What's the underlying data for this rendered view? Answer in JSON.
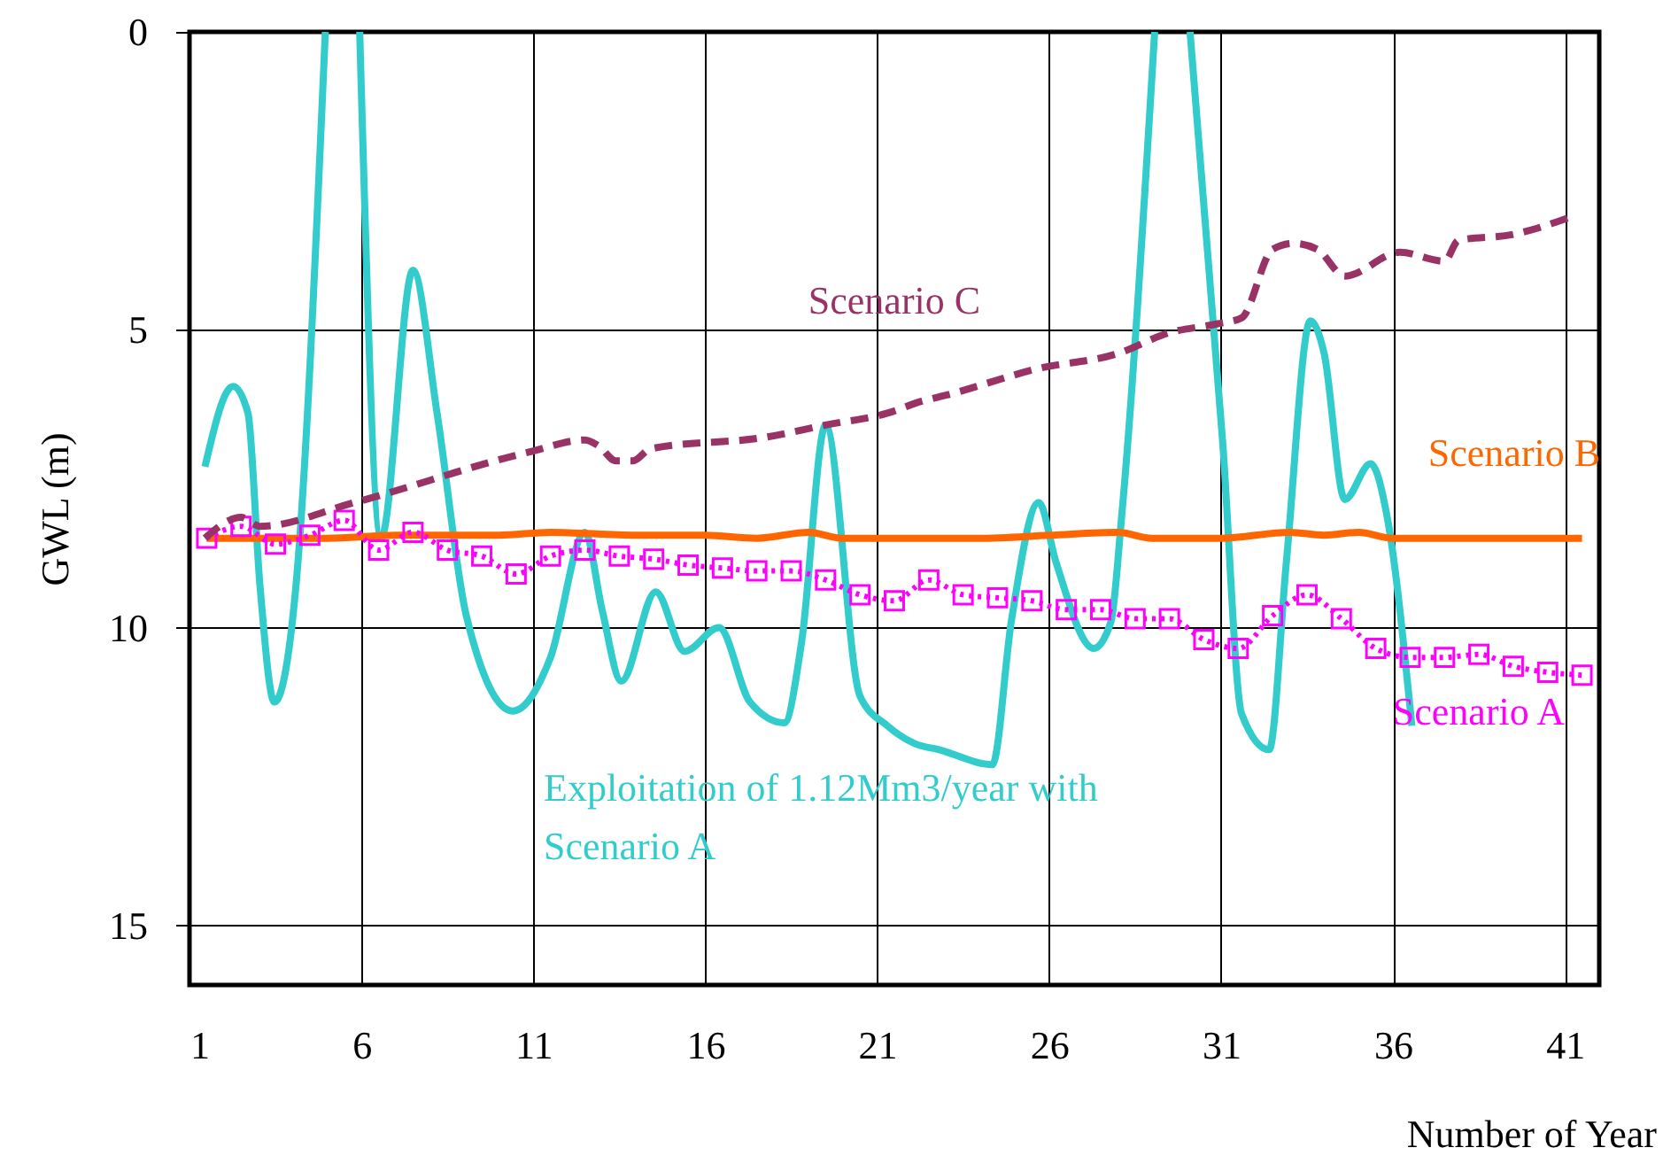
{
  "chart_data": {
    "type": "line",
    "xlabel": "Number of Year",
    "ylabel": "GWL (m)",
    "xlim": [
      1,
      42
    ],
    "ylim": [
      16,
      0
    ],
    "xticks": [
      1,
      6,
      11,
      16,
      21,
      26,
      31,
      36,
      41
    ],
    "yticks": [
      0,
      5,
      10,
      15
    ],
    "grid": true,
    "legend": false,
    "series": [
      {
        "name": "Exploitation of 1.12Mm3/year with Scenario A",
        "color": "#33cccc",
        "line_style": "solid",
        "marker": "none",
        "x": [
          1.45,
          2.27,
          2.7,
          3.05,
          3.47,
          4.08,
          4.95,
          5.5,
          5.95,
          6.57,
          7.5,
          8.2,
          9.05,
          10.4,
          11.5,
          12.5,
          13.0,
          13.56,
          14.56,
          15.4,
          16.4,
          17.3,
          18.3,
          18.8,
          19.5,
          20.5,
          21.3,
          22.1,
          22.8,
          24.35,
          24.9,
          25.7,
          26.2,
          27.3,
          27.8,
          28.1,
          29.07,
          29.6,
          30.1,
          31.05,
          31.6,
          32.4,
          32.9,
          33.6,
          34.0,
          34.6,
          35.35,
          35.85,
          36.55
        ],
        "values": [
          7.3,
          5.95,
          6.4,
          9.3,
          11.25,
          9.4,
          0,
          null,
          0,
          8.5,
          4.0,
          6.4,
          9.8,
          11.4,
          10.5,
          8.4,
          9.7,
          10.9,
          9.4,
          10.4,
          10.0,
          11.25,
          11.6,
          10.25,
          6.6,
          11.15,
          11.65,
          11.95,
          12.05,
          12.3,
          9.9,
          7.9,
          8.9,
          10.35,
          9.9,
          8.2,
          0,
          null,
          0,
          6.9,
          11.45,
          12.05,
          8.9,
          4.85,
          5.4,
          7.85,
          7.25,
          8.2,
          11.65
        ]
      },
      {
        "name": "Scenario B",
        "color": "#ff6600",
        "line_style": "solid",
        "marker": "none",
        "x": [
          1.5,
          5,
          7,
          10,
          11.5,
          14,
          16,
          17.5,
          19,
          20,
          24,
          26,
          28,
          29,
          31,
          33,
          34,
          35,
          36,
          37.5,
          41.5
        ],
        "values": [
          8.5,
          8.5,
          8.45,
          8.45,
          8.4,
          8.45,
          8.45,
          8.5,
          8.4,
          8.5,
          8.5,
          8.45,
          8.4,
          8.5,
          8.5,
          8.4,
          8.45,
          8.4,
          8.5,
          8.5,
          8.5
        ]
      },
      {
        "name": "Scenario A",
        "color": "#ff00ff",
        "line_style": "dotted",
        "marker": "square",
        "x": [
          1.5,
          2.5,
          3.5,
          4.5,
          5.5,
          6.5,
          7.5,
          8.5,
          9.5,
          10.5,
          11.5,
          12.5,
          13.5,
          14.5,
          15.5,
          16.5,
          17.5,
          18.5,
          19.5,
          20.5,
          21.5,
          22.5,
          23.5,
          24.5,
          25.5,
          26.5,
          27.5,
          28.5,
          29.5,
          30.5,
          31.5,
          32.5,
          33.5,
          34.5,
          35.5,
          36.5,
          37.5,
          38.5,
          39.5,
          40.5,
          41.5
        ],
        "values": [
          8.5,
          8.3,
          8.6,
          8.45,
          8.2,
          8.7,
          8.4,
          8.7,
          8.8,
          9.1,
          8.8,
          8.7,
          8.8,
          8.85,
          8.95,
          9.0,
          9.05,
          9.05,
          9.2,
          9.45,
          9.55,
          9.2,
          9.45,
          9.5,
          9.55,
          9.7,
          9.7,
          9.85,
          9.85,
          10.2,
          10.35,
          9.8,
          9.45,
          9.85,
          10.35,
          10.5,
          10.5,
          10.45,
          10.65,
          10.75,
          10.8
        ]
      },
      {
        "name": "Scenario C",
        "color": "#993366",
        "line_style": "dashed",
        "marker": "none",
        "x": [
          1.45,
          2.5,
          3.05,
          5.8,
          10.9,
          12.5,
          12.9,
          13.4,
          13.9,
          14.4,
          17.8,
          19.5,
          21.3,
          22.3,
          23.0,
          25.7,
          28.0,
          29.5,
          30.9,
          31.6,
          32.5,
          33.1,
          33.8,
          34.6,
          36.2,
          37.5,
          37.9,
          39.5,
          41.2
        ],
        "values": [
          8.5,
          8.15,
          8.3,
          7.9,
          7.05,
          6.85,
          6.95,
          7.2,
          7.2,
          7.0,
          6.8,
          6.6,
          6.4,
          6.2,
          6.1,
          5.65,
          5.4,
          5.05,
          4.9,
          4.8,
          3.65,
          3.55,
          3.65,
          4.1,
          3.7,
          3.85,
          3.5,
          3.4,
          3.1
        ]
      }
    ]
  }
}
